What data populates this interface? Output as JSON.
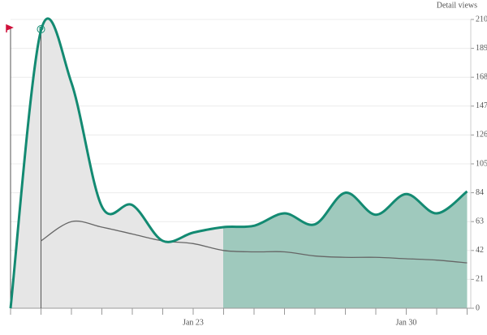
{
  "chart_data": {
    "type": "line",
    "y_axis_label": "Detail views",
    "categories": [
      null,
      null,
      null,
      null,
      null,
      null,
      "Jan 23",
      null,
      null,
      null,
      null,
      null,
      null,
      "Jan 30",
      null,
      null
    ],
    "series": [
      {
        "color": "#138a72",
        "values": [
          0,
          202,
          164,
          74,
          75,
          49,
          55,
          59,
          60,
          69,
          61,
          84,
          68,
          83,
          69,
          85
        ]
      },
      {
        "color": "#666666",
        "values": [
          null,
          49,
          63,
          59,
          54,
          49,
          47,
          42,
          41,
          41,
          38,
          37,
          37,
          36,
          35,
          33
        ]
      }
    ],
    "area_colors": [
      "#e6e6e6",
      "#9fc9bd"
    ],
    "ylim": [
      0,
      210
    ],
    "yticks": [
      0,
      21,
      42,
      63,
      84,
      105,
      126,
      147,
      168,
      189,
      210
    ],
    "grid": true
  }
}
